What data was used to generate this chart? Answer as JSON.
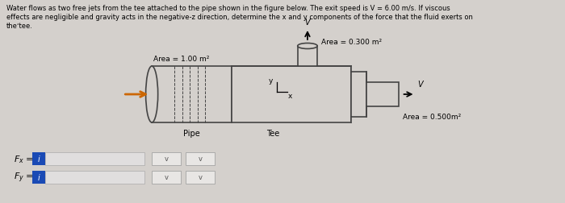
{
  "bg_color": "#d4d0cc",
  "pipe_face": "#d4d0cc",
  "pipe_outline": "#444444",
  "arrow_color_orange": "#cc6600",
  "title_line1": "Water flows as two free jets from the tee attached to the pipe shown in the figure below. The exit speed is V = 6.00 m/s. If viscous",
  "title_line2": "effects are negligible and gravity acts in the negative-z direction, determine the x and y components of the force that the fluid exerts on",
  "title_line3": "theʻtee.",
  "label_area1": "Area = 1.00 m²",
  "label_area2": "Area = 0.300 m²",
  "label_area3": "Area = 0.500m²",
  "label_pipe": "Pipe",
  "label_tee": "Tee",
  "label_fx": "F_x =",
  "label_fy": "F_y =",
  "label_v_top": "V",
  "label_v_right": "V",
  "blue_box_color": "#1a4ab5",
  "blue_box_text": "i",
  "input_box_color": "#e0dede",
  "dropdown_color": "#e8e6e4",
  "lw": 1.2
}
